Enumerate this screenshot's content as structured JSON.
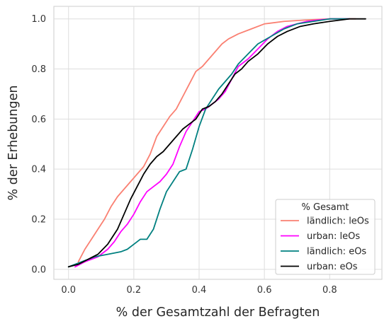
{
  "chart_data": {
    "type": "line",
    "title": "",
    "xlabel": "% der Gesamtzahl der Befragten",
    "ylabel": "% der Erhebungen",
    "xlim": [
      -0.045,
      0.96
    ],
    "ylim": [
      -0.04,
      1.05
    ],
    "xticks": [
      0.0,
      0.2,
      0.4,
      0.6,
      0.8
    ],
    "yticks": [
      0.0,
      0.2,
      0.4,
      0.6,
      0.8,
      1.0
    ],
    "xtick_labels": [
      "0.0",
      "0.2",
      "0.4",
      "0.6",
      "0.8"
    ],
    "ytick_labels": [
      "0.0",
      "0.2",
      "0.4",
      "0.6",
      "0.8",
      "1.0"
    ],
    "grid": true,
    "legend": {
      "title": "% Gesamt",
      "position": "lower-right"
    },
    "series": [
      {
        "name": "ländlich: leOs",
        "color": "#fa8072",
        "x": [
          0.03,
          0.05,
          0.07,
          0.09,
          0.11,
          0.13,
          0.15,
          0.17,
          0.19,
          0.21,
          0.23,
          0.25,
          0.27,
          0.29,
          0.31,
          0.33,
          0.35,
          0.37,
          0.39,
          0.41,
          0.43,
          0.45,
          0.47,
          0.49,
          0.52,
          0.56,
          0.6,
          0.66,
          0.72,
          0.8,
          0.88
        ],
        "y": [
          0.03,
          0.08,
          0.12,
          0.16,
          0.2,
          0.25,
          0.29,
          0.32,
          0.35,
          0.38,
          0.41,
          0.46,
          0.53,
          0.57,
          0.61,
          0.64,
          0.69,
          0.74,
          0.79,
          0.81,
          0.84,
          0.87,
          0.9,
          0.92,
          0.94,
          0.96,
          0.98,
          0.99,
          0.995,
          1.0,
          1.0
        ]
      },
      {
        "name": "urban: leOs",
        "color": "#ff00ff",
        "x": [
          0.02,
          0.05,
          0.09,
          0.12,
          0.14,
          0.16,
          0.18,
          0.2,
          0.22,
          0.24,
          0.26,
          0.28,
          0.3,
          0.32,
          0.34,
          0.36,
          0.38,
          0.4,
          0.42,
          0.44,
          0.46,
          0.48,
          0.5,
          0.52,
          0.55,
          0.58,
          0.61,
          0.64,
          0.67,
          0.7,
          0.73,
          0.76,
          0.8,
          0.86
        ],
        "y": [
          0.01,
          0.03,
          0.05,
          0.08,
          0.11,
          0.15,
          0.18,
          0.22,
          0.27,
          0.31,
          0.33,
          0.35,
          0.38,
          0.42,
          0.49,
          0.55,
          0.59,
          0.63,
          0.64,
          0.66,
          0.68,
          0.71,
          0.76,
          0.81,
          0.84,
          0.88,
          0.92,
          0.95,
          0.97,
          0.98,
          0.99,
          0.995,
          1.0,
          1.0
        ]
      },
      {
        "name": "ländlich: eOs",
        "color": "#008080",
        "x": [
          0.0,
          0.04,
          0.08,
          0.12,
          0.16,
          0.18,
          0.2,
          0.22,
          0.24,
          0.26,
          0.28,
          0.3,
          0.32,
          0.34,
          0.36,
          0.38,
          0.4,
          0.42,
          0.44,
          0.46,
          0.48,
          0.5,
          0.52,
          0.55,
          0.58,
          0.62,
          0.66,
          0.7,
          0.75,
          0.8,
          0.86
        ],
        "y": [
          0.01,
          0.03,
          0.05,
          0.06,
          0.07,
          0.08,
          0.1,
          0.12,
          0.12,
          0.16,
          0.24,
          0.31,
          0.35,
          0.39,
          0.4,
          0.48,
          0.57,
          0.64,
          0.68,
          0.72,
          0.75,
          0.78,
          0.82,
          0.86,
          0.9,
          0.93,
          0.96,
          0.98,
          0.99,
          1.0,
          1.0
        ]
      },
      {
        "name": "urban: eOs",
        "color": "#000000",
        "x": [
          0.0,
          0.03,
          0.06,
          0.09,
          0.12,
          0.15,
          0.17,
          0.19,
          0.21,
          0.23,
          0.25,
          0.27,
          0.29,
          0.31,
          0.33,
          0.35,
          0.37,
          0.39,
          0.41,
          0.43,
          0.45,
          0.47,
          0.49,
          0.51,
          0.53,
          0.55,
          0.58,
          0.61,
          0.64,
          0.67,
          0.71,
          0.75,
          0.8,
          0.86,
          0.91
        ],
        "y": [
          0.01,
          0.02,
          0.04,
          0.06,
          0.1,
          0.16,
          0.22,
          0.28,
          0.33,
          0.38,
          0.42,
          0.45,
          0.47,
          0.5,
          0.53,
          0.56,
          0.58,
          0.6,
          0.64,
          0.65,
          0.67,
          0.7,
          0.74,
          0.78,
          0.8,
          0.83,
          0.86,
          0.9,
          0.93,
          0.95,
          0.97,
          0.98,
          0.99,
          1.0,
          1.0
        ]
      }
    ]
  }
}
